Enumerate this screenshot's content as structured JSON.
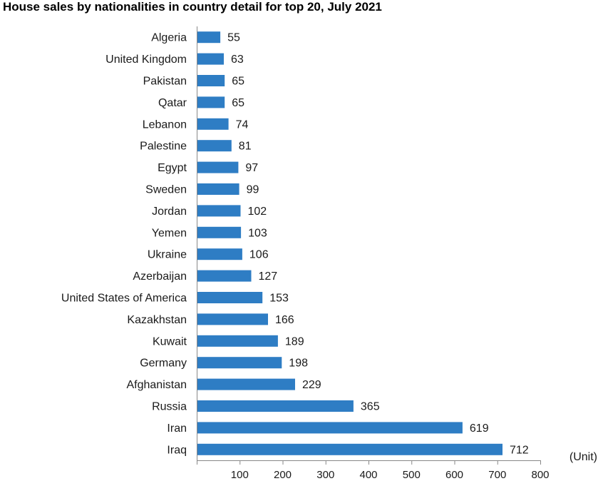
{
  "chart_data": {
    "type": "bar",
    "orientation": "horizontal",
    "title": "House sales by nationalities in country detail for top 20, July 2021",
    "unit_label": "(Unit)",
    "categories": [
      "Algeria",
      "United Kingdom",
      "Pakistan",
      "Qatar",
      "Lebanon",
      "Palestine",
      "Egypt",
      "Sweden",
      "Jordan",
      "Yemen",
      "Ukraine",
      "Azerbaijan",
      "United States of America",
      "Kazakhstan",
      "Kuwait",
      "Germany",
      "Afghanistan",
      "Russia",
      "Iran",
      "Iraq"
    ],
    "values": [
      55,
      63,
      65,
      65,
      74,
      81,
      97,
      99,
      102,
      103,
      106,
      127,
      153,
      166,
      189,
      198,
      229,
      365,
      619,
      712
    ],
    "value_labels": [
      "55",
      "63",
      "65",
      "65",
      "74",
      "81",
      "97",
      "99",
      "102",
      "103",
      "106",
      "127",
      "153",
      "166",
      "189",
      "198",
      "229",
      "365",
      "619",
      "712"
    ],
    "xlim": [
      0,
      800
    ],
    "xticks": [
      100,
      200,
      300,
      400,
      500,
      600,
      700,
      800
    ],
    "xtick_labels": [
      "100",
      "200",
      "300",
      "400",
      "500",
      "600",
      "700",
      "800"
    ],
    "grid": false,
    "bar_color": "#2e7dc4"
  }
}
